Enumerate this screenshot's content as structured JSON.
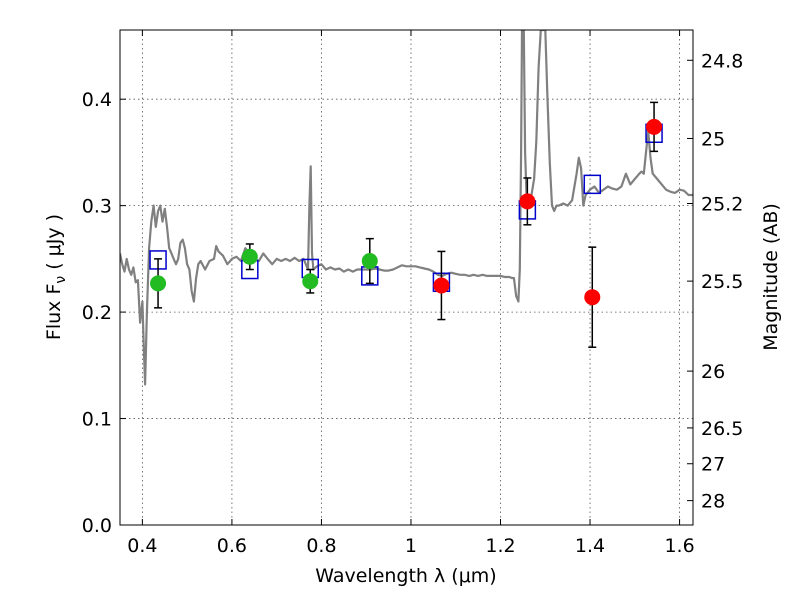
{
  "chart_data": {
    "type": "scatter",
    "title": "",
    "xlabel": "Wavelength  λ (μm)",
    "ylabel": "Flux  F",
    "ylabel_sub": "ν",
    "ylabel_unit": "( μJy )",
    "y2label": "Magnitude (AB)",
    "xlim": [
      0.35,
      1.63
    ],
    "ylim": [
      0.0,
      0.465
    ],
    "grid": true,
    "x_ticks": [
      {
        "value": 0.4,
        "label": "0.4"
      },
      {
        "value": 0.6,
        "label": "0.6"
      },
      {
        "value": 0.8,
        "label": "0.8"
      },
      {
        "value": 1.0,
        "label": "1"
      },
      {
        "value": 1.2,
        "label": "1.2"
      },
      {
        "value": 1.4,
        "label": "1.4"
      },
      {
        "value": 1.6,
        "label": "1.6"
      }
    ],
    "y_ticks": [
      {
        "value": 0.0,
        "label": "0.0"
      },
      {
        "value": 0.1,
        "label": "0.1"
      },
      {
        "value": 0.2,
        "label": "0.2"
      },
      {
        "value": 0.3,
        "label": "0.3"
      },
      {
        "value": 0.4,
        "label": "0.4"
      }
    ],
    "y2_ticks": [
      {
        "value": 24.8,
        "label": "24.8"
      },
      {
        "value": 25.0,
        "label": "25"
      },
      {
        "value": 25.2,
        "label": "25.2"
      },
      {
        "value": 25.5,
        "label": "25.5"
      },
      {
        "value": 26.0,
        "label": "26"
      },
      {
        "value": 26.5,
        "label": "26.5"
      },
      {
        "value": 27.0,
        "label": "27"
      },
      {
        "value": 28.0,
        "label": "28"
      }
    ],
    "series": [
      {
        "kind": "spectrum",
        "color": "#808080",
        "points": [
          [
            0.35,
            0.255
          ],
          [
            0.355,
            0.245
          ],
          [
            0.36,
            0.238
          ],
          [
            0.365,
            0.25
          ],
          [
            0.37,
            0.24
          ],
          [
            0.375,
            0.235
          ],
          [
            0.38,
            0.242
          ],
          [
            0.385,
            0.228
          ],
          [
            0.39,
            0.23
          ],
          [
            0.395,
            0.19
          ],
          [
            0.4,
            0.21
          ],
          [
            0.403,
            0.17
          ],
          [
            0.406,
            0.132
          ],
          [
            0.41,
            0.2
          ],
          [
            0.415,
            0.26
          ],
          [
            0.42,
            0.285
          ],
          [
            0.425,
            0.3
          ],
          [
            0.43,
            0.28
          ],
          [
            0.435,
            0.295
          ],
          [
            0.44,
            0.3
          ],
          [
            0.445,
            0.285
          ],
          [
            0.45,
            0.297
          ],
          [
            0.455,
            0.28
          ],
          [
            0.46,
            0.26
          ],
          [
            0.465,
            0.255
          ],
          [
            0.47,
            0.25
          ],
          [
            0.475,
            0.245
          ],
          [
            0.48,
            0.25
          ],
          [
            0.485,
            0.265
          ],
          [
            0.49,
            0.268
          ],
          [
            0.495,
            0.26
          ],
          [
            0.5,
            0.245
          ],
          [
            0.505,
            0.24
          ],
          [
            0.51,
            0.22
          ],
          [
            0.515,
            0.21
          ],
          [
            0.52,
            0.232
          ],
          [
            0.525,
            0.245
          ],
          [
            0.53,
            0.248
          ],
          [
            0.54,
            0.24
          ],
          [
            0.55,
            0.248
          ],
          [
            0.56,
            0.25
          ],
          [
            0.565,
            0.262
          ],
          [
            0.57,
            0.257
          ],
          [
            0.58,
            0.253
          ],
          [
            0.59,
            0.245
          ],
          [
            0.6,
            0.25
          ],
          [
            0.61,
            0.252
          ],
          [
            0.62,
            0.248
          ],
          [
            0.63,
            0.26
          ],
          [
            0.64,
            0.255
          ],
          [
            0.65,
            0.25
          ],
          [
            0.66,
            0.248
          ],
          [
            0.67,
            0.255
          ],
          [
            0.68,
            0.25
          ],
          [
            0.69,
            0.245
          ],
          [
            0.7,
            0.25
          ],
          [
            0.71,
            0.248
          ],
          [
            0.72,
            0.25
          ],
          [
            0.73,
            0.248
          ],
          [
            0.74,
            0.251
          ],
          [
            0.75,
            0.248
          ],
          [
            0.76,
            0.25
          ],
          [
            0.765,
            0.245
          ],
          [
            0.77,
            0.24
          ],
          [
            0.773,
            0.3
          ],
          [
            0.776,
            0.337
          ],
          [
            0.779,
            0.255
          ],
          [
            0.782,
            0.24
          ],
          [
            0.79,
            0.243
          ],
          [
            0.8,
            0.245
          ],
          [
            0.81,
            0.24
          ],
          [
            0.82,
            0.242
          ],
          [
            0.83,
            0.24
          ],
          [
            0.84,
            0.241
          ],
          [
            0.85,
            0.238
          ],
          [
            0.86,
            0.24
          ],
          [
            0.87,
            0.238
          ],
          [
            0.88,
            0.24
          ],
          [
            0.89,
            0.24
          ],
          [
            0.9,
            0.24
          ],
          [
            0.91,
            0.24
          ],
          [
            0.92,
            0.241
          ],
          [
            0.93,
            0.24
          ],
          [
            0.94,
            0.239
          ],
          [
            0.95,
            0.239
          ],
          [
            0.96,
            0.24
          ],
          [
            0.97,
            0.242
          ],
          [
            0.98,
            0.244
          ],
          [
            0.99,
            0.243
          ],
          [
            1.0,
            0.243
          ],
          [
            1.01,
            0.243
          ],
          [
            1.02,
            0.242
          ],
          [
            1.03,
            0.241
          ],
          [
            1.04,
            0.24
          ],
          [
            1.05,
            0.238
          ],
          [
            1.06,
            0.235
          ],
          [
            1.07,
            0.234
          ],
          [
            1.08,
            0.236
          ],
          [
            1.09,
            0.237
          ],
          [
            1.1,
            0.236
          ],
          [
            1.11,
            0.235
          ],
          [
            1.12,
            0.235
          ],
          [
            1.13,
            0.234
          ],
          [
            1.14,
            0.235
          ],
          [
            1.15,
            0.234
          ],
          [
            1.16,
            0.235
          ],
          [
            1.17,
            0.234
          ],
          [
            1.18,
            0.234
          ],
          [
            1.19,
            0.234
          ],
          [
            1.2,
            0.234
          ],
          [
            1.21,
            0.233
          ],
          [
            1.22,
            0.233
          ],
          [
            1.225,
            0.232
          ],
          [
            1.23,
            0.232
          ],
          [
            1.235,
            0.215
          ],
          [
            1.24,
            0.21
          ],
          [
            1.243,
            0.24
          ],
          [
            1.246,
            0.35
          ],
          [
            1.248,
            0.465
          ],
          [
            1.252,
            0.465
          ],
          [
            1.255,
            0.35
          ],
          [
            1.258,
            0.31
          ],
          [
            1.262,
            0.305
          ],
          [
            1.265,
            0.3
          ],
          [
            1.27,
            0.312
          ],
          [
            1.275,
            0.325
          ],
          [
            1.28,
            0.36
          ],
          [
            1.285,
            0.43
          ],
          [
            1.29,
            0.465
          ],
          [
            1.3,
            0.465
          ],
          [
            1.305,
            0.4
          ],
          [
            1.31,
            0.34
          ],
          [
            1.315,
            0.3
          ],
          [
            1.32,
            0.295
          ],
          [
            1.325,
            0.3
          ],
          [
            1.33,
            0.3
          ],
          [
            1.34,
            0.302
          ],
          [
            1.35,
            0.3
          ],
          [
            1.36,
            0.305
          ],
          [
            1.37,
            0.33
          ],
          [
            1.375,
            0.345
          ],
          [
            1.38,
            0.335
          ],
          [
            1.385,
            0.3
          ],
          [
            1.39,
            0.31
          ],
          [
            1.4,
            0.315
          ],
          [
            1.41,
            0.318
          ],
          [
            1.42,
            0.312
          ],
          [
            1.43,
            0.315
          ],
          [
            1.44,
            0.318
          ],
          [
            1.45,
            0.316
          ],
          [
            1.46,
            0.315
          ],
          [
            1.47,
            0.318
          ],
          [
            1.48,
            0.33
          ],
          [
            1.49,
            0.32
          ],
          [
            1.5,
            0.325
          ],
          [
            1.51,
            0.33
          ],
          [
            1.515,
            0.332
          ],
          [
            1.52,
            0.33
          ],
          [
            1.525,
            0.35
          ],
          [
            1.53,
            0.37
          ],
          [
            1.535,
            0.345
          ],
          [
            1.54,
            0.33
          ],
          [
            1.55,
            0.325
          ],
          [
            1.56,
            0.32
          ],
          [
            1.57,
            0.315
          ],
          [
            1.58,
            0.313
          ],
          [
            1.59,
            0.312
          ],
          [
            1.6,
            0.315
          ],
          [
            1.61,
            0.314
          ],
          [
            1.62,
            0.31
          ],
          [
            1.63,
            0.31
          ]
        ]
      },
      {
        "kind": "model",
        "color": "#0000cc",
        "points": [
          {
            "x": 0.435,
            "y": 0.249
          },
          {
            "x": 0.64,
            "y": 0.24
          },
          {
            "x": 0.775,
            "y": 0.241
          },
          {
            "x": 0.908,
            "y": 0.234
          },
          {
            "x": 1.068,
            "y": 0.228
          },
          {
            "x": 1.26,
            "y": 0.296
          },
          {
            "x": 1.405,
            "y": 0.32
          },
          {
            "x": 1.543,
            "y": 0.368
          }
        ]
      },
      {
        "kind": "observed",
        "color": "#22bb22",
        "points": [
          {
            "x": 0.435,
            "y": 0.227,
            "err": 0.023
          },
          {
            "x": 0.64,
            "y": 0.252,
            "err": 0.012
          },
          {
            "x": 0.775,
            "y": 0.229,
            "err": 0.011
          },
          {
            "x": 0.908,
            "y": 0.248,
            "err": 0.021
          }
        ]
      },
      {
        "kind": "observed",
        "color": "#ff0000",
        "points": [
          {
            "x": 1.068,
            "y": 0.225,
            "err": 0.032
          },
          {
            "x": 1.26,
            "y": 0.304,
            "err": 0.022
          },
          {
            "x": 1.405,
            "y": 0.214,
            "err": 0.047
          },
          {
            "x": 1.543,
            "y": 0.374,
            "err": 0.023
          }
        ]
      }
    ]
  }
}
